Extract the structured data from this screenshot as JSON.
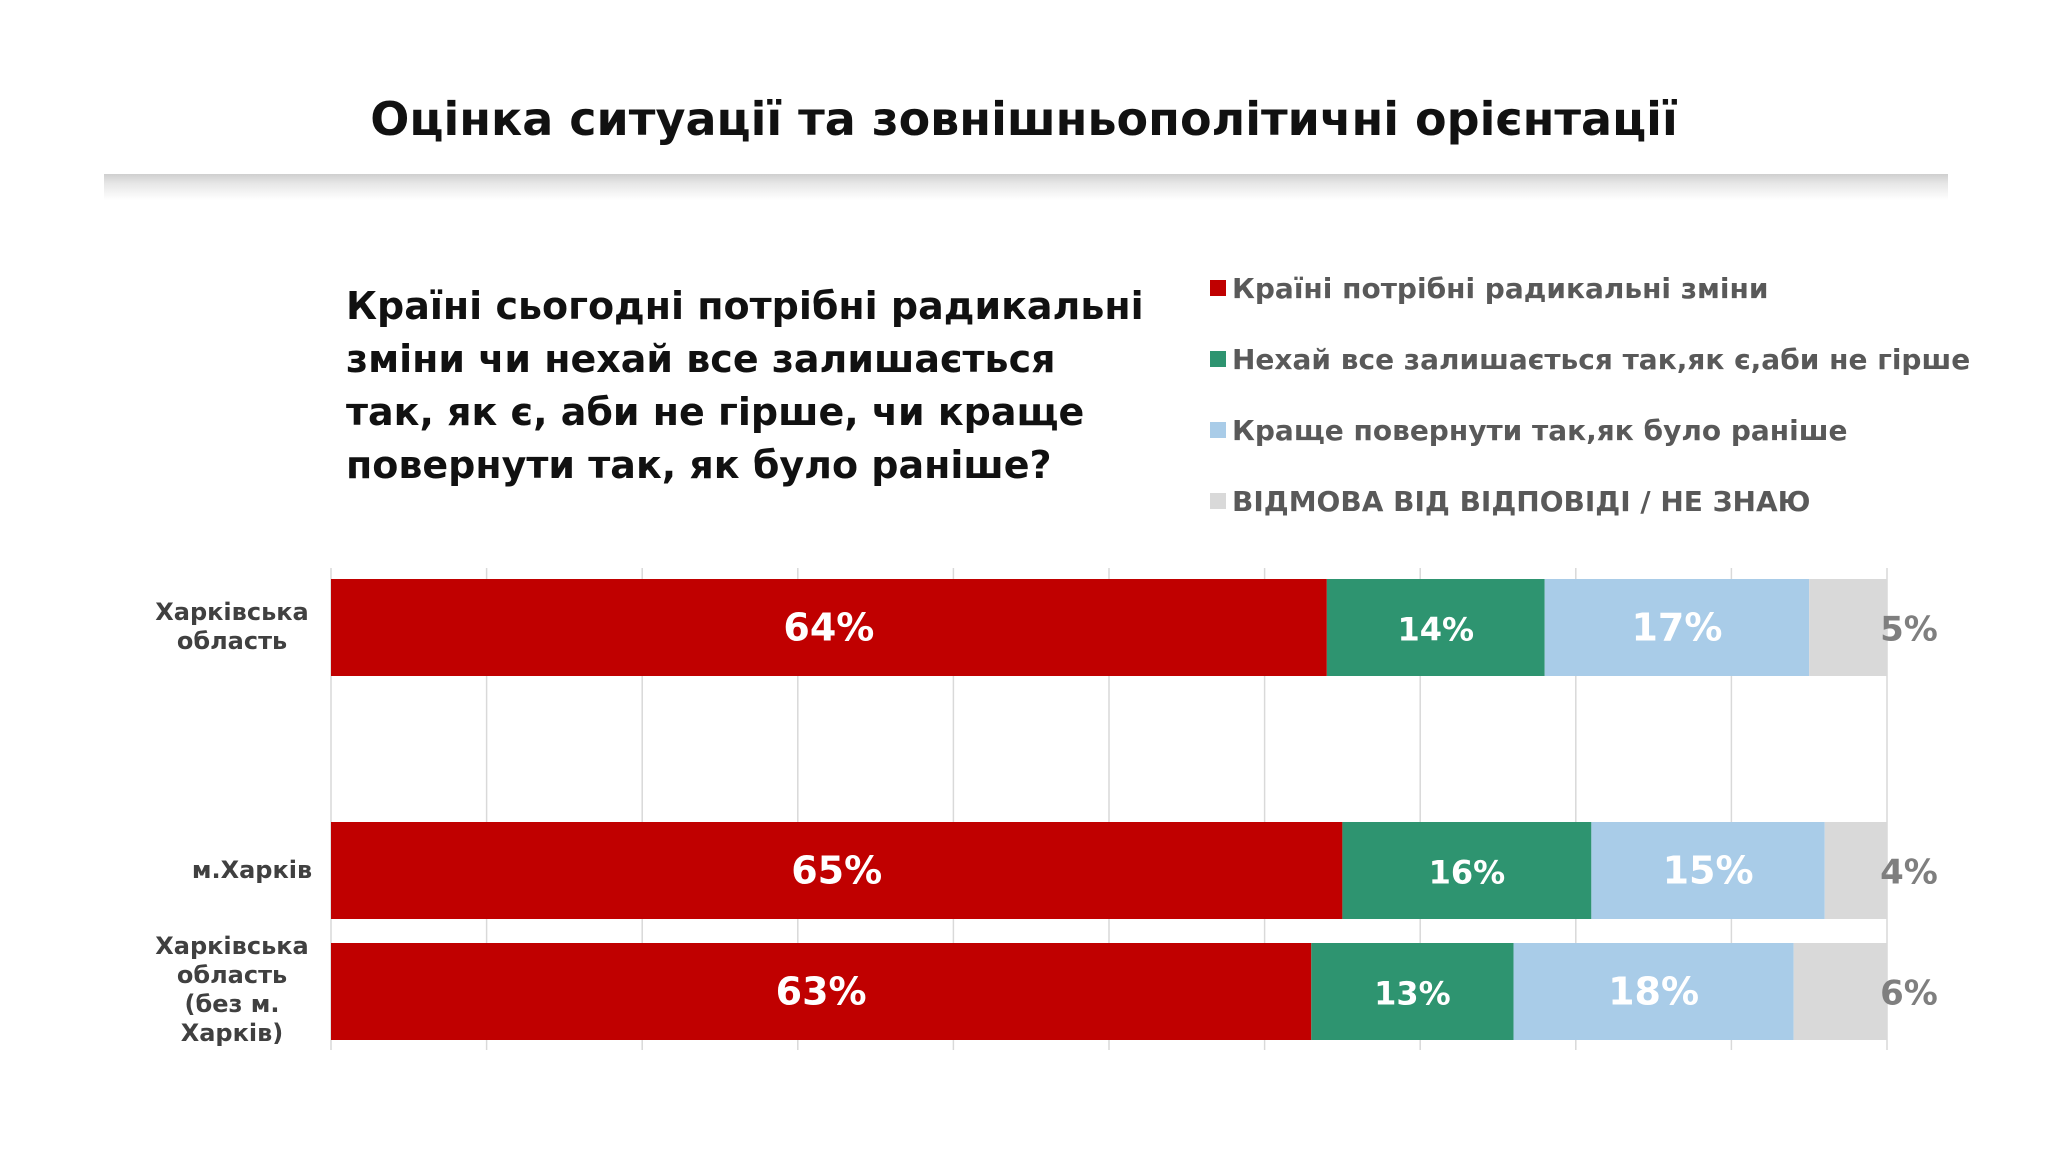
{
  "title": "Оцінка ситуації та зовнішньополітичні орієнтації",
  "question": "Країні сьогодні потрібні радикальні зміни чи нехай все залишається так, як є, аби не гірше, чи краще повернути так, як було раніше?",
  "legend": [
    {
      "label": "Країні потрібні радикальні зміни",
      "color": "#c00000"
    },
    {
      "label": "Нехай все залишається так,як є,аби не гірше",
      "color": "#2e9470"
    },
    {
      "label": "Краще повернути так,як було раніше",
      "color": "#a9cce8"
    },
    {
      "label": "ВІДМОВА ВІД ВІДПОВІДІ / НЕ ЗНАЮ",
      "color": "#d9d9d9"
    }
  ],
  "chart_data": {
    "type": "bar",
    "orientation": "horizontal",
    "stacked": true,
    "categories": [
      "Харківська область",
      "м.Харків",
      "Харківська область (без м. Харків)"
    ],
    "series": [
      {
        "name": "Країні потрібні радикальні зміни",
        "values": [
          64,
          65,
          63
        ],
        "labels": [
          "64%",
          "65%",
          "63%"
        ],
        "color": "#c00000"
      },
      {
        "name": "Нехай все залишається так,як є,аби не гірше",
        "values": [
          14,
          16,
          13
        ],
        "labels": [
          "14%",
          "16%",
          "13%"
        ],
        "color": "#2e9470"
      },
      {
        "name": "Краще повернути так,як було раніше",
        "values": [
          17,
          15,
          18
        ],
        "labels": [
          "17%",
          "15%",
          "18%"
        ],
        "color": "#a9cce8"
      },
      {
        "name": "ВІДМОВА ВІД ВІДПОВІДІ / НЕ ЗНАЮ",
        "values": [
          5,
          4,
          6
        ],
        "labels": [
          "5%",
          "4%",
          "6%"
        ],
        "color": "#d9d9d9"
      }
    ],
    "xlim": [
      0,
      100
    ],
    "grid": true,
    "legend_position": "top-right"
  }
}
